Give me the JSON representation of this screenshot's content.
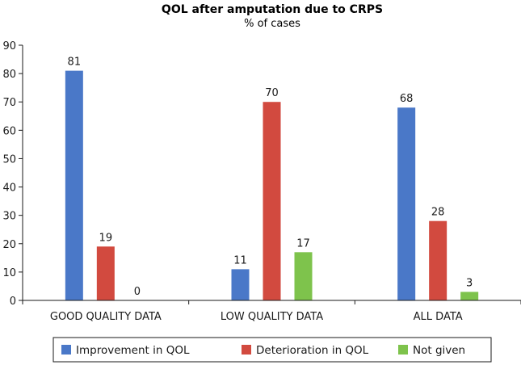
{
  "chart_data": {
    "type": "bar",
    "title": "QOL after amputation due to CRPS",
    "subtitle": "% of cases",
    "categories": [
      "GOOD QUALITY DATA",
      "LOW QUALITY DATA",
      "ALL DATA"
    ],
    "series": [
      {
        "name": "Improvement in QOL",
        "values": [
          81,
          11,
          68
        ],
        "color": "#4a78c8"
      },
      {
        "name": "Deterioration in QOL",
        "values": [
          19,
          70,
          28
        ],
        "color": "#d24a3f"
      },
      {
        "name": "Not given",
        "values": [
          0,
          17,
          3
        ],
        "color": "#7ec34c"
      }
    ],
    "ylim": [
      0,
      90
    ],
    "yticks": [
      0,
      10,
      20,
      30,
      40,
      50,
      60,
      70,
      80,
      90
    ],
    "grid": false,
    "legend_position": "bottom",
    "data_labels": true
  }
}
